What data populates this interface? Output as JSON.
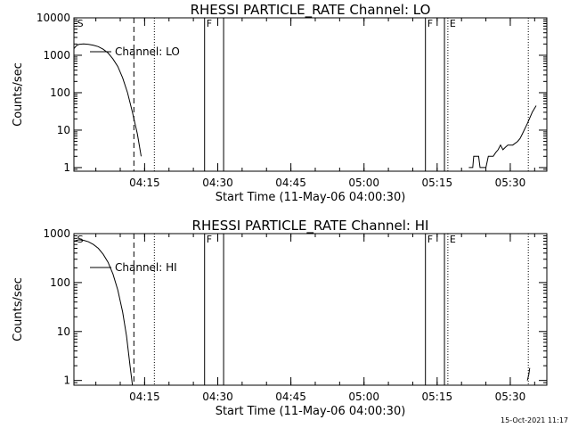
{
  "footer": {
    "timestamp": "15-Oct-2021 11:17"
  },
  "chart_data": [
    {
      "type": "line",
      "title": "RHESSI PARTICLE_RATE Channel: LO",
      "xlabel": "Start Time (11-May-06 04:00:30)",
      "ylabel": "Counts/sec",
      "yscale": "log",
      "xlim": [
        0,
        97
      ],
      "ylim": [
        0.8,
        10000
      ],
      "x_units": "minutes after 04:00:30",
      "xticks": [
        {
          "value": 14.5,
          "label": "04:15"
        },
        {
          "value": 29.5,
          "label": "04:30"
        },
        {
          "value": 44.5,
          "label": "04:45"
        },
        {
          "value": 59.5,
          "label": "05:00"
        },
        {
          "value": 74.5,
          "label": "05:15"
        },
        {
          "value": 89.5,
          "label": "05:30"
        }
      ],
      "yticks": [
        {
          "value": 1,
          "label": "1"
        },
        {
          "value": 10,
          "label": "10"
        },
        {
          "value": 100,
          "label": "100"
        },
        {
          "value": 1000,
          "label": "1000"
        },
        {
          "value": 10000,
          "label": "10000"
        }
      ],
      "legend": {
        "label": "Channel: LO",
        "position": "top-left"
      },
      "series": [
        {
          "name": "Channel: LO",
          "segments": [
            [
              [
                0,
                1500
              ],
              [
                0.5,
                1800
              ],
              [
                1,
                1950
              ],
              [
                2,
                2000
              ],
              [
                3,
                1950
              ],
              [
                4,
                1850
              ],
              [
                5,
                1700
              ],
              [
                6,
                1450
              ],
              [
                7,
                1150
              ],
              [
                8,
                800
              ],
              [
                9,
                500
              ],
              [
                10,
                250
              ],
              [
                11,
                100
              ],
              [
                12,
                30
              ],
              [
                13,
                8
              ],
              [
                13.8,
                2
              ]
            ],
            [
              [
                81,
                1
              ],
              [
                81.8,
                1
              ],
              [
                82,
                2
              ],
              [
                83,
                2
              ],
              [
                83.3,
                1
              ],
              [
                84,
                1
              ],
              [
                84.5,
                1
              ],
              [
                85,
                2
              ],
              [
                86,
                2
              ],
              [
                86.5,
                2.5
              ],
              [
                87,
                3
              ],
              [
                87.5,
                4
              ],
              [
                88,
                3
              ],
              [
                88.5,
                3.5
              ],
              [
                89,
                4
              ],
              [
                90,
                4
              ],
              [
                91,
                5
              ],
              [
                91.5,
                6
              ],
              [
                92,
                8
              ],
              [
                93,
                15
              ],
              [
                94,
                30
              ],
              [
                94.8,
                45
              ]
            ]
          ]
        }
      ],
      "markers": [
        {
          "x": 0.3,
          "label": "S",
          "style": "none"
        },
        {
          "x": 12.3,
          "label": "",
          "style": "dashed"
        },
        {
          "x": 16.5,
          "label": "",
          "style": "dotted"
        },
        {
          "x": 26.8,
          "label": "F",
          "style": "solid"
        },
        {
          "x": 30.7,
          "label": "",
          "style": "solid"
        },
        {
          "x": 72.1,
          "label": "F",
          "style": "solid"
        },
        {
          "x": 76.0,
          "label": "",
          "style": "solid"
        },
        {
          "x": 76.7,
          "label": "E",
          "style": "dotted"
        },
        {
          "x": 93.2,
          "label": "",
          "style": "dotted"
        }
      ]
    },
    {
      "type": "line",
      "title": "RHESSI PARTICLE_RATE Channel: HI",
      "xlabel": "Start Time (11-May-06 04:00:30)",
      "ylabel": "Counts/sec",
      "yscale": "log",
      "xlim": [
        0,
        97
      ],
      "ylim": [
        0.8,
        1000
      ],
      "x_units": "minutes after 04:00:30",
      "xticks": [
        {
          "value": 14.5,
          "label": "04:15"
        },
        {
          "value": 29.5,
          "label": "04:30"
        },
        {
          "value": 44.5,
          "label": "04:45"
        },
        {
          "value": 59.5,
          "label": "05:00"
        },
        {
          "value": 74.5,
          "label": "05:15"
        },
        {
          "value": 89.5,
          "label": "05:30"
        }
      ],
      "yticks": [
        {
          "value": 1,
          "label": "1"
        },
        {
          "value": 10,
          "label": "10"
        },
        {
          "value": 100,
          "label": "100"
        },
        {
          "value": 1000,
          "label": "1000"
        }
      ],
      "legend": {
        "label": "Channel: HI",
        "position": "top-left"
      },
      "series": [
        {
          "name": "Channel: HI",
          "segments": [
            [
              [
                0,
                700
              ],
              [
                1,
                750
              ],
              [
                2,
                730
              ],
              [
                3,
                680
              ],
              [
                4,
                600
              ],
              [
                5,
                500
              ],
              [
                6,
                380
              ],
              [
                7,
                260
              ],
              [
                8,
                150
              ],
              [
                9,
                70
              ],
              [
                10,
                25
              ],
              [
                10.8,
                8
              ],
              [
                11.5,
                2
              ],
              [
                12,
                0.8
              ]
            ],
            [
              [
                93,
                1
              ],
              [
                93.3,
                1.3
              ],
              [
                93.5,
                1.8
              ]
            ]
          ]
        }
      ],
      "markers": [
        {
          "x": 0.3,
          "label": "S",
          "style": "none"
        },
        {
          "x": 12.3,
          "label": "",
          "style": "dashed"
        },
        {
          "x": 16.5,
          "label": "",
          "style": "dotted"
        },
        {
          "x": 26.8,
          "label": "F",
          "style": "solid"
        },
        {
          "x": 30.7,
          "label": "",
          "style": "solid"
        },
        {
          "x": 72.1,
          "label": "F",
          "style": "solid"
        },
        {
          "x": 76.0,
          "label": "",
          "style": "solid"
        },
        {
          "x": 76.7,
          "label": "E",
          "style": "dotted"
        },
        {
          "x": 93.2,
          "label": "",
          "style": "dotted"
        }
      ]
    }
  ]
}
